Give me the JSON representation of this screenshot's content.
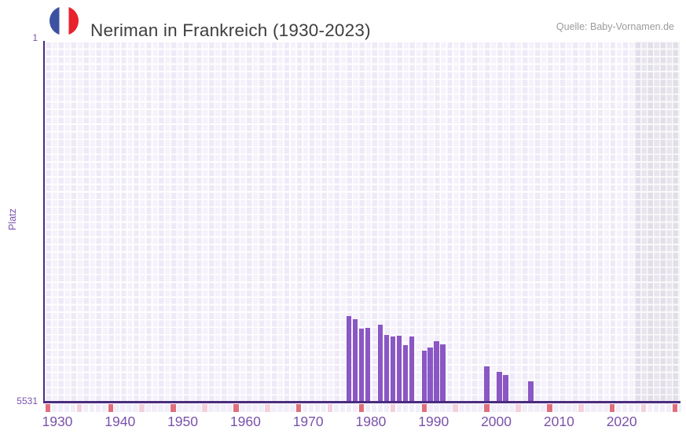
{
  "header": {
    "title": "Neriman in Frankreich (1930-2023)",
    "source": "Quelle: Baby-Vornamen.de",
    "flag_icon": "france-flag-icon",
    "flag_colors": {
      "blue": "#3d51a3",
      "white": "#ffffff",
      "red": "#e8222d"
    }
  },
  "y_axis": {
    "label": "Platz",
    "top_tick": "1",
    "bottom_tick": "5531"
  },
  "chart_data": {
    "type": "bar",
    "title": "Neriman in Frankreich (1930-2023)",
    "xlabel": "",
    "ylabel": "Platz",
    "y_inverted": true,
    "ylim": [
      1,
      5531
    ],
    "x_range_years": [
      1928,
      2030
    ],
    "x_ticks": [
      1930,
      1940,
      1950,
      1960,
      1970,
      1980,
      1990,
      2000,
      2010,
      2020
    ],
    "grid": true,
    "legend": "none",
    "points": [
      {
        "year": 1976,
        "rank": 4220
      },
      {
        "year": 1977,
        "rank": 4270
      },
      {
        "year": 1978,
        "rank": 4410
      },
      {
        "year": 1979,
        "rank": 4400
      },
      {
        "year": 1981,
        "rank": 4350
      },
      {
        "year": 1982,
        "rank": 4510
      },
      {
        "year": 1983,
        "rank": 4530
      },
      {
        "year": 1984,
        "rank": 4520
      },
      {
        "year": 1985,
        "rank": 4660
      },
      {
        "year": 1986,
        "rank": 4530
      },
      {
        "year": 1988,
        "rank": 4750
      },
      {
        "year": 1989,
        "rank": 4700
      },
      {
        "year": 1990,
        "rank": 4600
      },
      {
        "year": 1991,
        "rank": 4650
      },
      {
        "year": 1998,
        "rank": 4990
      },
      {
        "year": 2000,
        "rank": 5070
      },
      {
        "year": 2001,
        "rank": 5120
      },
      {
        "year": 2005,
        "rank": 5220
      }
    ],
    "axis_markers": {
      "red_years": [
        1928,
        1938,
        1948,
        1958,
        1968,
        1978,
        1988,
        1998,
        2008,
        2018,
        2028
      ],
      "pink_years": [
        1933,
        1943,
        1953,
        1963,
        1973,
        1983,
        1993,
        2003,
        2013,
        2023
      ]
    },
    "shaded_region_years": [
      2022,
      2030
    ],
    "colors": {
      "bar": "#8a57c4",
      "axis_line": "#4b2c7f",
      "tick_text": "#7a52aa",
      "title_text": "#3e3e3e",
      "source_text": "#9b9b9b",
      "plot_bg_a": "#eeeaf7",
      "plot_bg_b": "#f5f2fb",
      "shade_bg_a": "#e2dfe9",
      "shade_bg_b": "#e8e5ee",
      "marker_red": "#e06e7c",
      "marker_pink": "#f3d0dc",
      "marker_plain": "#f2eef9"
    }
  }
}
